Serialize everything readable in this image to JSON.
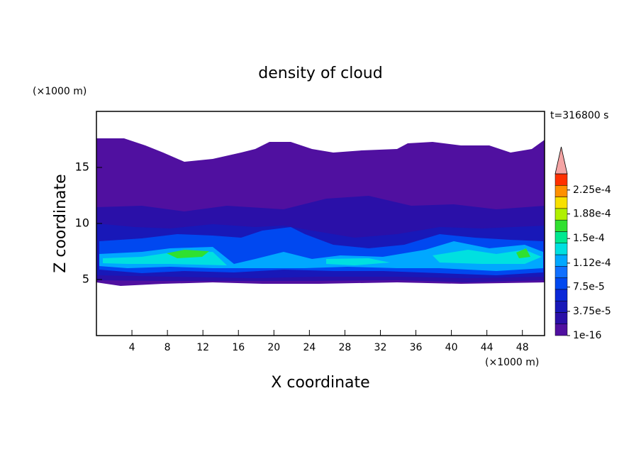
{
  "chart_data": {
    "type": "contour",
    "title": "density of cloud",
    "x_label": "X coordinate",
    "y_label": "Z coordinate",
    "x_unit": "(×1000 m)",
    "y_unit": "(×1000 m)",
    "time_label": "t=316800 s",
    "xlim": [
      0,
      50.5
    ],
    "ylim": [
      0,
      20
    ],
    "xticks": [
      4,
      8,
      12,
      16,
      20,
      24,
      28,
      32,
      36,
      40,
      44,
      48
    ],
    "yticks": [
      5,
      10,
      15
    ],
    "colorbar": {
      "lim": [
        1e-16,
        0.00025
      ],
      "extend_color": "#f4a4a4",
      "colors": [
        "#5010a0",
        "#2a10a8",
        "#1818b8",
        "#0a28d8",
        "#0048f0",
        "#1070ff",
        "#00a8ff",
        "#00e0e0",
        "#00e890",
        "#30e030",
        "#b0f000",
        "#f8e000",
        "#ff9000",
        "#ff3000"
      ],
      "ticks": [
        {
          "value": 1e-16,
          "label": "1e-16"
        },
        {
          "value": 3.75e-05,
          "label": "3.75e-5"
        },
        {
          "value": 7.5e-05,
          "label": "7.5e-5"
        },
        {
          "value": 0.000112,
          "label": "1.12e-4"
        },
        {
          "value": 0.00015,
          "label": "1.5e-4"
        },
        {
          "value": 0.000188,
          "label": "1.88e-4"
        },
        {
          "value": 0.000225,
          "label": "2.25e-4"
        }
      ]
    }
  }
}
